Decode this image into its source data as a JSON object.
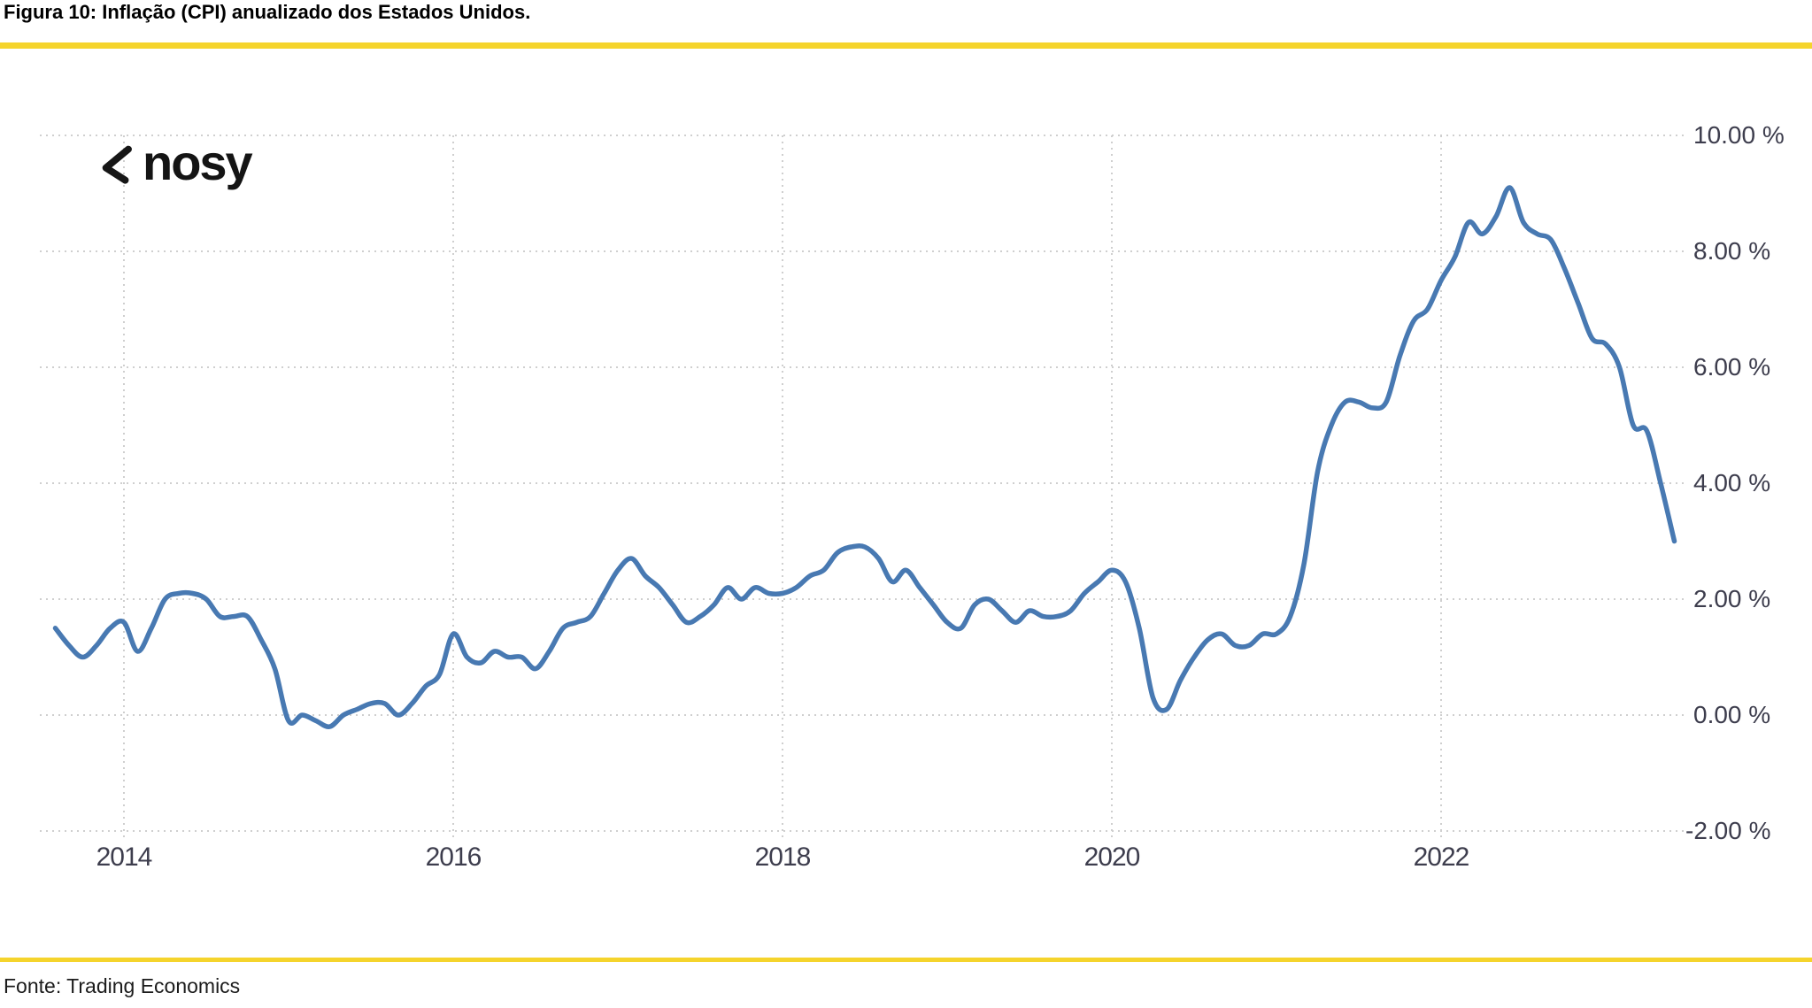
{
  "figure": {
    "title": "Figura 10: Inflação (CPI) anualizado dos Estados Unidos.",
    "source": "Fonte: Trading Economics"
  },
  "logo": {
    "text": "nosy",
    "mark": "angle-chevron-icon"
  },
  "colors": {
    "accent_rule": "#F5D42C",
    "line": "#4879B2",
    "grid": "#CFCFCF",
    "axis_text": "#3D3D4D",
    "title_text": "#000000",
    "source_text": "#1C1C1C"
  },
  "chart_data": {
    "type": "line",
    "title": "",
    "xlabel": "",
    "ylabel": "",
    "grid": "dotted",
    "legend_position": "none",
    "ylim": [
      -2,
      10
    ],
    "y_tick_labels": [
      "10.00 %",
      "8.00 %",
      "6.00 %",
      "4.00 %",
      "2.00 %",
      "0.00 %",
      "-2.00 %"
    ],
    "y_tick_values": [
      10,
      8,
      6,
      4,
      2,
      0,
      -2
    ],
    "x_tick_labels": [
      "2014",
      "2016",
      "2018",
      "2020",
      "2022"
    ],
    "x_tick_years": [
      2014,
      2016,
      2018,
      2020,
      2022
    ],
    "series_start": "2013-08",
    "frequency": "monthly",
    "unit": "%",
    "values": [
      1.5,
      1.2,
      1.0,
      1.2,
      1.5,
      1.6,
      1.1,
      1.5,
      2.0,
      2.1,
      2.1,
      2.0,
      1.7,
      1.7,
      1.7,
      1.3,
      0.8,
      -0.1,
      0.0,
      -0.1,
      -0.2,
      0.0,
      0.1,
      0.2,
      0.2,
      0.0,
      0.2,
      0.5,
      0.7,
      1.4,
      1.0,
      0.9,
      1.1,
      1.0,
      1.0,
      0.8,
      1.1,
      1.5,
      1.6,
      1.7,
      2.1,
      2.5,
      2.7,
      2.4,
      2.2,
      1.9,
      1.6,
      1.7,
      1.9,
      2.2,
      2.0,
      2.2,
      2.1,
      2.1,
      2.2,
      2.4,
      2.5,
      2.8,
      2.9,
      2.9,
      2.7,
      2.3,
      2.5,
      2.2,
      1.9,
      1.6,
      1.5,
      1.9,
      2.0,
      1.8,
      1.6,
      1.8,
      1.7,
      1.7,
      1.8,
      2.1,
      2.3,
      2.5,
      2.3,
      1.5,
      0.3,
      0.1,
      0.6,
      1.0,
      1.3,
      1.4,
      1.2,
      1.2,
      1.4,
      1.4,
      1.7,
      2.6,
      4.2,
      5.0,
      5.4,
      5.4,
      5.3,
      5.4,
      6.2,
      6.8,
      7.0,
      7.5,
      7.9,
      8.5,
      8.3,
      8.6,
      9.1,
      8.5,
      8.3,
      8.2,
      7.7,
      7.1,
      6.5,
      6.4,
      6.0,
      5.0,
      4.9,
      4.0,
      3.0
    ]
  }
}
